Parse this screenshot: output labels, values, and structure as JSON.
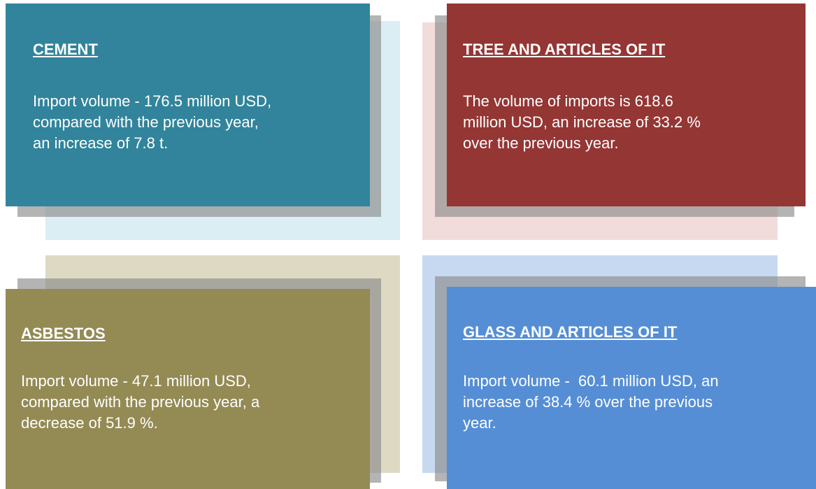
{
  "panels": [
    {
      "title": "CEMENT",
      "lines": [
        "Import volume - 176.5 million USD,",
        "compared with the previous year,",
        "an increase of 7.8 t."
      ]
    },
    {
      "title": "TREE AND ARTICLES OF IT",
      "lines": [
        "The volume of imports is 618.6",
        "million USD, an increase of 33.2 %",
        "over the previous year."
      ]
    },
    {
      "title": "ASBESTOS",
      "lines": [
        "Import volume - 47.1 million USD,",
        "compared with the previous year, a",
        "decrease of 51.9 %."
      ]
    },
    {
      "title": "GLASS AND ARTICLES OF IT",
      "lines": [
        "Import volume -  60.1 million USD, an",
        "increase of 38.4 % over the previous",
        "year."
      ]
    }
  ]
}
